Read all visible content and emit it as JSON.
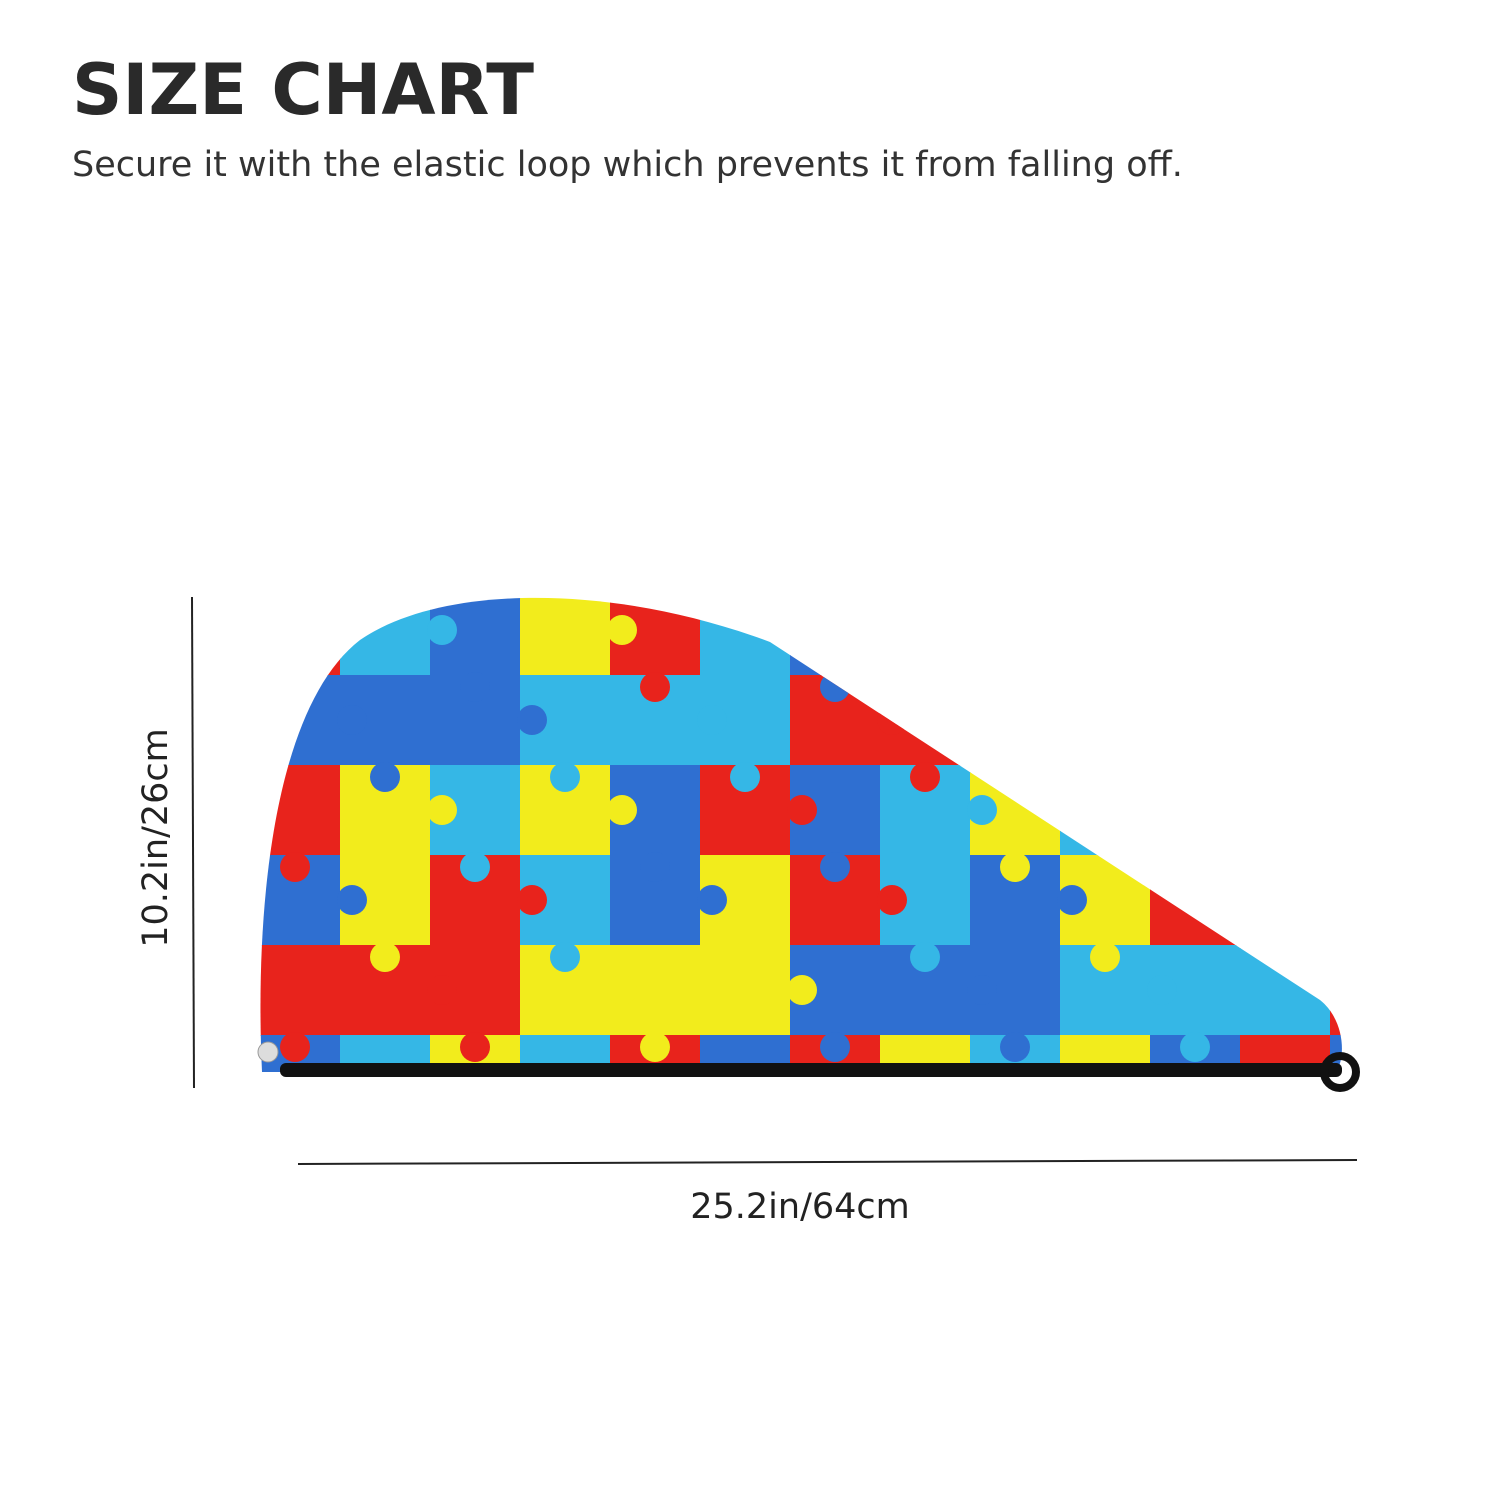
{
  "header": {
    "title": "SIZE CHART",
    "subtitle": "Secure it with the elastic loop which prevents it from falling off."
  },
  "dimensions": {
    "height": "10.2in/26cm",
    "width": "25.2in/64cm"
  }
}
